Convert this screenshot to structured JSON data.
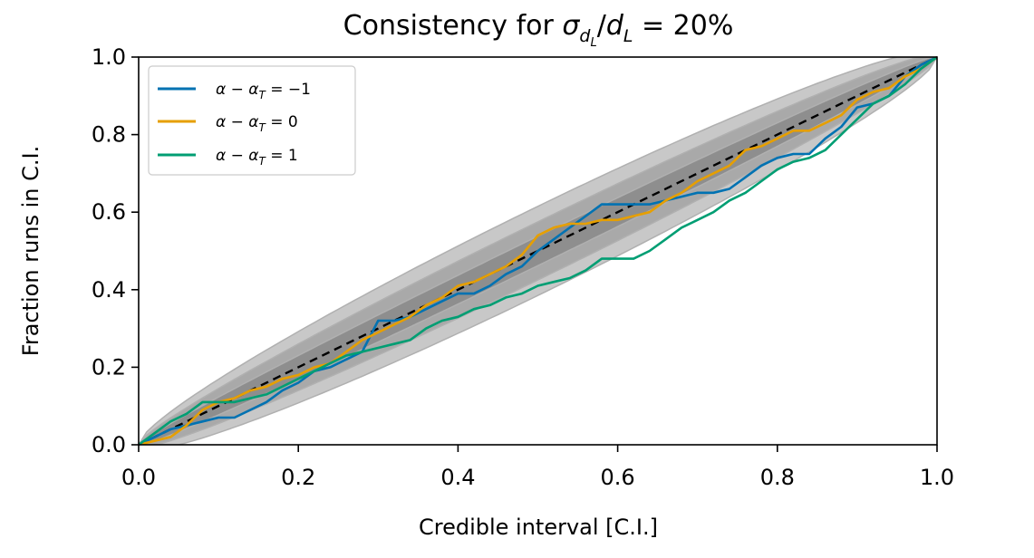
{
  "chart_data": {
    "type": "line",
    "title": {
      "prefix": "Consistency for ",
      "math": "σ_{d_L}/d_L = 20%",
      "sigma": "σ",
      "sub_d": "d",
      "sub_L": "L",
      "slash": "/",
      "d": "d",
      "L": "L",
      "rest": " = 20%"
    },
    "xlabel": "Credible interval [C.I.]",
    "ylabel": "Fraction runs in C.I.",
    "xlim": [
      0,
      1
    ],
    "ylim": [
      0,
      1
    ],
    "xticks": [
      0.0,
      0.2,
      0.4,
      0.6,
      0.8,
      1.0
    ],
    "yticks": [
      0.0,
      0.2,
      0.4,
      0.6,
      0.8,
      1.0
    ],
    "xtick_labels": [
      "0.0",
      "0.2",
      "0.4",
      "0.6",
      "0.8",
      "1.0"
    ],
    "ytick_labels": [
      "0.0",
      "0.2",
      "0.4",
      "0.6",
      "0.8",
      "1.0"
    ],
    "grid": false,
    "legend_position": "top-left",
    "reference_line": {
      "style": "dashed",
      "color": "#000000",
      "x": [
        0,
        1
      ],
      "y": [
        0,
        1
      ]
    },
    "confidence_bands": [
      {
        "level": "outer",
        "color": "#c8c8c8",
        "half_width_peak": 0.115
      },
      {
        "level": "middle",
        "color": "#a9a9a9",
        "half_width_peak": 0.075
      },
      {
        "level": "inner",
        "color": "#8e8e8e",
        "half_width_peak": 0.038
      }
    ],
    "series": [
      {
        "name": "α − α_T = −1",
        "label": {
          "alpha": "α",
          "minus": " − ",
          "alphaT": "α",
          "sub": "T",
          "rest": " = −1"
        },
        "color": "#0072B2",
        "x": [
          0,
          0.02,
          0.04,
          0.06,
          0.08,
          0.1,
          0.12,
          0.14,
          0.16,
          0.18,
          0.2,
          0.22,
          0.24,
          0.26,
          0.28,
          0.3,
          0.32,
          0.34,
          0.36,
          0.38,
          0.4,
          0.42,
          0.44,
          0.46,
          0.48,
          0.5,
          0.52,
          0.54,
          0.56,
          0.58,
          0.6,
          0.62,
          0.64,
          0.66,
          0.68,
          0.7,
          0.72,
          0.74,
          0.76,
          0.78,
          0.8,
          0.82,
          0.84,
          0.86,
          0.88,
          0.9,
          0.92,
          0.94,
          0.96,
          0.98,
          1.0
        ],
        "y": [
          0,
          0.02,
          0.04,
          0.05,
          0.06,
          0.07,
          0.07,
          0.09,
          0.11,
          0.14,
          0.16,
          0.19,
          0.2,
          0.22,
          0.24,
          0.32,
          0.32,
          0.33,
          0.35,
          0.37,
          0.39,
          0.39,
          0.41,
          0.44,
          0.46,
          0.5,
          0.53,
          0.56,
          0.59,
          0.62,
          0.62,
          0.62,
          0.62,
          0.63,
          0.64,
          0.65,
          0.65,
          0.66,
          0.69,
          0.72,
          0.74,
          0.75,
          0.75,
          0.79,
          0.82,
          0.87,
          0.88,
          0.9,
          0.95,
          0.98,
          1.0
        ]
      },
      {
        "name": "α − α_T = 0",
        "label": {
          "alpha": "α",
          "minus": " − ",
          "alphaT": "α",
          "sub": "T",
          "rest": " = 0"
        },
        "color": "#E69F00",
        "x": [
          0,
          0.02,
          0.04,
          0.06,
          0.08,
          0.1,
          0.12,
          0.14,
          0.16,
          0.18,
          0.2,
          0.22,
          0.24,
          0.26,
          0.28,
          0.3,
          0.32,
          0.34,
          0.36,
          0.38,
          0.4,
          0.42,
          0.44,
          0.46,
          0.48,
          0.5,
          0.52,
          0.54,
          0.56,
          0.58,
          0.6,
          0.62,
          0.64,
          0.66,
          0.68,
          0.7,
          0.72,
          0.74,
          0.76,
          0.78,
          0.8,
          0.82,
          0.84,
          0.86,
          0.88,
          0.9,
          0.92,
          0.94,
          0.96,
          0.98,
          1.0
        ],
        "y": [
          0,
          0.01,
          0.02,
          0.05,
          0.09,
          0.11,
          0.12,
          0.14,
          0.15,
          0.17,
          0.18,
          0.2,
          0.21,
          0.24,
          0.27,
          0.29,
          0.31,
          0.33,
          0.36,
          0.38,
          0.41,
          0.42,
          0.44,
          0.46,
          0.49,
          0.54,
          0.56,
          0.57,
          0.57,
          0.58,
          0.58,
          0.59,
          0.6,
          0.63,
          0.65,
          0.68,
          0.7,
          0.72,
          0.76,
          0.77,
          0.79,
          0.81,
          0.81,
          0.83,
          0.85,
          0.89,
          0.91,
          0.92,
          0.95,
          0.97,
          1.0
        ]
      },
      {
        "name": "α − α_T = 1",
        "label": {
          "alpha": "α",
          "minus": " − ",
          "alphaT": "α",
          "sub": "T",
          "rest": " = 1"
        },
        "color": "#009E73",
        "x": [
          0,
          0.02,
          0.04,
          0.06,
          0.08,
          0.1,
          0.12,
          0.14,
          0.16,
          0.18,
          0.2,
          0.22,
          0.24,
          0.26,
          0.28,
          0.3,
          0.32,
          0.34,
          0.36,
          0.38,
          0.4,
          0.42,
          0.44,
          0.46,
          0.48,
          0.5,
          0.52,
          0.54,
          0.56,
          0.58,
          0.6,
          0.62,
          0.64,
          0.66,
          0.68,
          0.7,
          0.72,
          0.74,
          0.76,
          0.78,
          0.8,
          0.82,
          0.84,
          0.86,
          0.88,
          0.9,
          0.92,
          0.94,
          0.96,
          0.98,
          1.0
        ],
        "y": [
          0,
          0.03,
          0.06,
          0.08,
          0.11,
          0.11,
          0.11,
          0.12,
          0.13,
          0.15,
          0.17,
          0.19,
          0.21,
          0.23,
          0.24,
          0.25,
          0.26,
          0.27,
          0.3,
          0.32,
          0.33,
          0.35,
          0.36,
          0.38,
          0.39,
          0.41,
          0.42,
          0.43,
          0.45,
          0.48,
          0.48,
          0.48,
          0.5,
          0.53,
          0.56,
          0.58,
          0.6,
          0.63,
          0.65,
          0.68,
          0.71,
          0.73,
          0.74,
          0.76,
          0.8,
          0.84,
          0.88,
          0.9,
          0.93,
          0.97,
          1.0
        ]
      }
    ]
  }
}
